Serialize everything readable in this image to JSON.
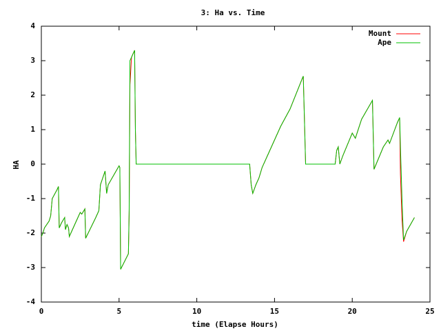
{
  "chart_data": {
    "type": "line",
    "title": "3: Ha vs. Time",
    "x_label": "time (Elapse Hours)",
    "y_label": "HA",
    "x": [
      0,
      0.1,
      0.2,
      0.5,
      0.6,
      0.7,
      1.0,
      1.1,
      1.15,
      1.3,
      1.5,
      1.55,
      1.65,
      1.75,
      1.8,
      2.0,
      2.3,
      2.5,
      2.6,
      2.8,
      2.85,
      3.5,
      3.7,
      3.8,
      4.1,
      4.2,
      4.3,
      5.0,
      5.05,
      5.1,
      5.6,
      5.65,
      5.7,
      5.8,
      5.9,
      6.0,
      6.05,
      6.1,
      13.4,
      13.5,
      13.6,
      13.8,
      14.0,
      14.2,
      14.6,
      14.8,
      15.2,
      15.4,
      16.0,
      16.8,
      16.85,
      17.0,
      18.9,
      19.0,
      19.1,
      19.2,
      19.4,
      20.0,
      20.2,
      20.6,
      21.3,
      21.4,
      22.0,
      22.3,
      22.4,
      22.9,
      23.05,
      23.1,
      23.2,
      23.3,
      23.5,
      24.0
    ],
    "series": [
      {
        "name": "Mount",
        "color": "#ff0000",
        "values": [
          -2.1,
          -2.0,
          -1.85,
          -1.65,
          -1.5,
          -1.0,
          -0.75,
          -0.65,
          -1.85,
          -1.7,
          -1.55,
          -1.9,
          -1.75,
          -1.85,
          -2.1,
          -1.9,
          -1.6,
          -1.4,
          -1.45,
          -1.3,
          -2.15,
          -1.55,
          -1.35,
          -0.6,
          -0.2,
          -0.85,
          -0.6,
          -0.05,
          -0.1,
          -3.05,
          -2.6,
          -1.45,
          2.3,
          3.1,
          3.2,
          3.3,
          1.0,
          0.0,
          0.0,
          -0.6,
          -0.85,
          -0.6,
          -0.4,
          -0.1,
          0.3,
          0.5,
          0.9,
          1.1,
          1.6,
          2.5,
          2.55,
          0.0,
          0.0,
          0.4,
          0.5,
          0.0,
          0.25,
          0.9,
          0.75,
          1.3,
          1.85,
          -0.15,
          0.5,
          0.7,
          0.6,
          1.2,
          1.35,
          -0.3,
          -1.6,
          -2.25,
          -1.95,
          -1.55
        ]
      },
      {
        "name": "Ape",
        "color": "#00c000",
        "values": [
          -2.1,
          -2.0,
          -1.85,
          -1.65,
          -1.5,
          -1.0,
          -0.75,
          -0.65,
          -1.85,
          -1.7,
          -1.55,
          -1.9,
          -1.75,
          -1.85,
          -2.1,
          -1.9,
          -1.6,
          -1.4,
          -1.45,
          -1.3,
          -2.15,
          -1.55,
          -1.35,
          -0.6,
          -0.2,
          -0.85,
          -0.6,
          -0.05,
          -0.1,
          -3.05,
          -2.6,
          -1.3,
          3.0,
          3.1,
          3.2,
          3.3,
          1.0,
          0.0,
          0.0,
          -0.6,
          -0.85,
          -0.6,
          -0.4,
          -0.1,
          0.3,
          0.5,
          0.9,
          1.1,
          1.6,
          2.5,
          2.55,
          0.0,
          0.0,
          0.4,
          0.5,
          0.0,
          0.25,
          0.9,
          0.75,
          1.3,
          1.85,
          -0.15,
          0.5,
          0.7,
          0.6,
          1.2,
          1.35,
          0.5,
          -1.0,
          -2.2,
          -1.95,
          -1.55
        ]
      }
    ],
    "xlim": [
      0,
      25
    ],
    "xticks": [
      0,
      5,
      10,
      15,
      20,
      25
    ],
    "ylim": [
      -4,
      4
    ],
    "yticks": [
      -4,
      -3,
      -2,
      -1,
      0,
      1,
      2,
      3,
      4
    ],
    "legend": "top-right"
  }
}
